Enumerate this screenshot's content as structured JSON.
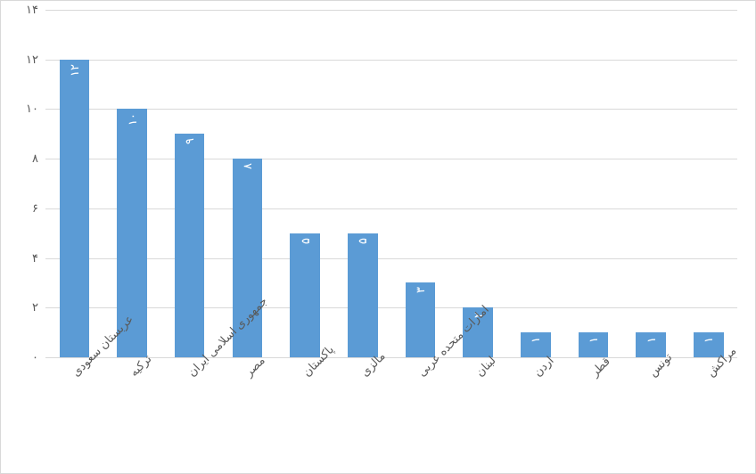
{
  "chart": {
    "type": "bar",
    "background_color": "#ffffff",
    "border_color": "#d9d9d9",
    "plot": {
      "bar_color": "#5b9bd5",
      "bar_label_color": "#ffffff",
      "axis_label_color": "#595959",
      "grid_color": "#d9d9d9",
      "tick_fontsize": 13,
      "bar_width_ratio": 0.52,
      "x_label_rotation_deg": -45,
      "ymin": 0,
      "ymax": 14,
      "ytick_step": 2
    },
    "yticks": [
      {
        "value": 0,
        "label": "۰"
      },
      {
        "value": 2,
        "label": "۲"
      },
      {
        "value": 4,
        "label": "۴"
      },
      {
        "value": 6,
        "label": "۶"
      },
      {
        "value": 8,
        "label": "۸"
      },
      {
        "value": 10,
        "label": "۱۰"
      },
      {
        "value": 12,
        "label": "۱۲"
      },
      {
        "value": 14,
        "label": "۱۴"
      }
    ],
    "data": [
      {
        "category": "عربستان سعودی",
        "value": 12,
        "value_label": "۱۲"
      },
      {
        "category": "ترکیه",
        "value": 10,
        "value_label": "۱۰"
      },
      {
        "category": "جمهوری اسلامی ایران",
        "value": 9,
        "value_label": "۹"
      },
      {
        "category": "مصر",
        "value": 8,
        "value_label": "۸"
      },
      {
        "category": "پاکستان",
        "value": 5,
        "value_label": "۵"
      },
      {
        "category": "مالزی",
        "value": 5,
        "value_label": "۵"
      },
      {
        "category": "امارات متحده عربی",
        "value": 3,
        "value_label": "۳"
      },
      {
        "category": "لبنان",
        "value": 2,
        "value_label": "۲"
      },
      {
        "category": "اردن",
        "value": 1,
        "value_label": "۱"
      },
      {
        "category": "قطر",
        "value": 1,
        "value_label": "۱"
      },
      {
        "category": "تونس",
        "value": 1,
        "value_label": "۱"
      },
      {
        "category": "مراکش",
        "value": 1,
        "value_label": "۱"
      }
    ]
  }
}
